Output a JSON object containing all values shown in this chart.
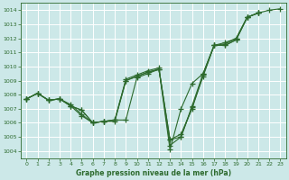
{
  "title": "Graphe pression niveau de la mer (hPa)",
  "bg_color": "#cce8e8",
  "grid_color": "#aacccc",
  "line_color": "#2d6a2d",
  "xlim": [
    -0.5,
    23.5
  ],
  "ylim": [
    1003.5,
    1014.5
  ],
  "yticks": [
    1004,
    1005,
    1006,
    1007,
    1008,
    1009,
    1010,
    1011,
    1012,
    1013,
    1014
  ],
  "xticks": [
    0,
    1,
    2,
    3,
    4,
    5,
    6,
    7,
    8,
    9,
    10,
    11,
    12,
    13,
    14,
    15,
    16,
    17,
    18,
    19,
    20,
    21,
    22,
    23
  ],
  "series": [
    [
      1007.7,
      1008.1,
      1007.6,
      1007.7,
      1007.2,
      1006.9,
      1006.0,
      1006.1,
      1006.2,
      1009.0,
      1009.3,
      1009.6,
      1009.8,
      1004.8,
      1005.0,
      1007.1,
      1009.3,
      1011.5,
      1011.5,
      1011.9,
      1013.5,
      1013.8,
      null,
      null
    ],
    [
      1007.7,
      1008.1,
      1007.6,
      1007.7,
      1007.3,
      1006.6,
      1006.0,
      1006.1,
      1006.2,
      1009.1,
      1009.4,
      1009.7,
      1009.9,
      1004.4,
      1005.0,
      1007.2,
      1009.5,
      1011.5,
      1011.6,
      1012.0,
      1013.5,
      1013.8,
      null,
      null
    ],
    [
      1007.7,
      1008.1,
      1007.6,
      1007.7,
      1007.2,
      1006.5,
      1006.0,
      1006.1,
      1006.1,
      1009.0,
      1009.3,
      1009.6,
      1009.8,
      1004.8,
      1005.2,
      1007.0,
      1009.4,
      1011.5,
      1011.5,
      1011.9,
      1013.5,
      1013.8,
      null,
      null
    ],
    [
      1007.7,
      1008.1,
      1007.6,
      1007.7,
      1007.2,
      1006.9,
      1006.0,
      1006.1,
      1006.2,
      1006.2,
      1009.2,
      1009.5,
      1009.8,
      1004.1,
      1007.0,
      1008.8,
      1009.5,
      1011.5,
      1011.7,
      1012.0,
      1013.5,
      1013.8,
      1014.0,
      1014.1
    ]
  ]
}
